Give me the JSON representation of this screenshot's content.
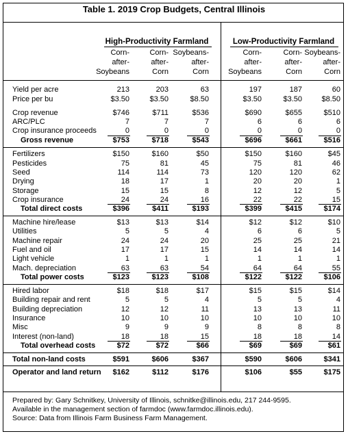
{
  "title": "Table 1.  2019 Crop Budgets, Central Illinois",
  "groups": {
    "high": "High-Productivity Farmland",
    "low": "Low-Productivity Farmland"
  },
  "columns": [
    {
      "l1": "Corn-",
      "l2": "after-",
      "l3": "Soybeans"
    },
    {
      "l1": "Corn-",
      "l2": "after-",
      "l3": "Corn"
    },
    {
      "l1": "Soybeans-",
      "l2": "after-",
      "l3": "Corn"
    },
    {
      "l1": "Corn-",
      "l2": "after-",
      "l3": "Soybeans"
    },
    {
      "l1": "Corn-",
      "l2": "after-",
      "l3": "Corn"
    },
    {
      "l1": "Soybeans-",
      "l2": "after-",
      "l3": "Corn"
    }
  ],
  "rows": [
    {
      "label": "Yield per acre",
      "values": [
        "213",
        "203",
        "63",
        "197",
        "187",
        "60"
      ]
    },
    {
      "label": "Price per bu",
      "values": [
        "$3.50",
        "$3.50",
        "$8.50",
        "$3.50",
        "$3.50",
        "$8.50"
      ]
    },
    {
      "label": "Crop revenue",
      "values": [
        "$746",
        "$711",
        "$536",
        "$690",
        "$655",
        "$510"
      ]
    },
    {
      "label": "ARC/PLC",
      "values": [
        "7",
        "7",
        "7",
        "6",
        "6",
        "6"
      ]
    },
    {
      "label": "Crop insurance proceeds",
      "values": [
        "0",
        "0",
        "0",
        "0",
        "0",
        "0"
      ]
    },
    {
      "label": "Gross revenue",
      "values": [
        "$753",
        "$718",
        "$543",
        "$696",
        "$661",
        "$516"
      ]
    },
    {
      "label": "Fertilizers",
      "values": [
        "$150",
        "$160",
        "$50",
        "$150",
        "$160",
        "$45"
      ]
    },
    {
      "label": "Pesticides",
      "values": [
        "75",
        "81",
        "45",
        "75",
        "81",
        "46"
      ]
    },
    {
      "label": "Seed",
      "values": [
        "114",
        "114",
        "73",
        "120",
        "120",
        "62"
      ]
    },
    {
      "label": "Drying",
      "values": [
        "18",
        "17",
        "1",
        "20",
        "20",
        "1"
      ]
    },
    {
      "label": "Storage",
      "values": [
        "15",
        "15",
        "8",
        "12",
        "12",
        "5"
      ]
    },
    {
      "label": "Crop insurance",
      "values": [
        "24",
        "24",
        "16",
        "22",
        "22",
        "15"
      ]
    },
    {
      "label": "Total direct costs",
      "values": [
        "$396",
        "$411",
        "$193",
        "$399",
        "$415",
        "$174"
      ]
    },
    {
      "label": "Machine hire/lease",
      "values": [
        "$13",
        "$13",
        "$14",
        "$12",
        "$12",
        "$10"
      ]
    },
    {
      "label": "Utilities",
      "values": [
        "5",
        "5",
        "4",
        "6",
        "6",
        "5"
      ]
    },
    {
      "label": "Machine repair",
      "values": [
        "24",
        "24",
        "20",
        "25",
        "25",
        "21"
      ]
    },
    {
      "label": "Fuel and oil",
      "values": [
        "17",
        "17",
        "15",
        "14",
        "14",
        "14"
      ]
    },
    {
      "label": "Light vehicle",
      "values": [
        "1",
        "1",
        "1",
        "1",
        "1",
        "1"
      ]
    },
    {
      "label": "Mach. depreciation",
      "values": [
        "63",
        "63",
        "54",
        "64",
        "64",
        "55"
      ]
    },
    {
      "label": "Total power costs",
      "values": [
        "$123",
        "$123",
        "$108",
        "$122",
        "$122",
        "$106"
      ]
    },
    {
      "label": "Hired labor",
      "values": [
        "$18",
        "$18",
        "$17",
        "$15",
        "$15",
        "$14"
      ]
    },
    {
      "label": "Building repair and rent",
      "values": [
        "5",
        "5",
        "4",
        "5",
        "5",
        "4"
      ]
    },
    {
      "label": "Building depreciation",
      "values": [
        "12",
        "12",
        "11",
        "13",
        "13",
        "11"
      ]
    },
    {
      "label": "Insurance",
      "values": [
        "10",
        "10",
        "10",
        "10",
        "10",
        "10"
      ]
    },
    {
      "label": "Misc",
      "values": [
        "9",
        "9",
        "9",
        "8",
        "8",
        "8"
      ]
    },
    {
      "label": "Interest (non-land)",
      "values": [
        "18",
        "18",
        "15",
        "18",
        "18",
        "14"
      ]
    },
    {
      "label": "Total overhead costs",
      "values": [
        "$72",
        "$72",
        "$66",
        "$69",
        "$69",
        "$61"
      ]
    },
    {
      "label": "Total non-land costs",
      "values": [
        "$591",
        "$606",
        "$367",
        "$590",
        "$606",
        "$341"
      ]
    },
    {
      "label": "Operator and land return",
      "values": [
        "$162",
        "$112",
        "$176",
        "$106",
        "$55",
        "$175"
      ]
    }
  ],
  "footer": {
    "line1": "Prepared by:  Gary Schnitkey, University of Illinois, schnitke@illinois.edu, 217 244-9595.",
    "line2": "Available in the management section of farmdoc (www.farmdoc.illinois.edu).",
    "line3": "Source: Data from Illinois Farm Business Farm Management."
  }
}
